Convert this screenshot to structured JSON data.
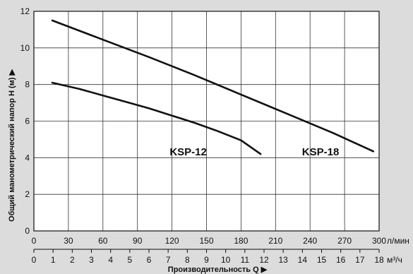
{
  "chart_data": {
    "type": "line",
    "y_title": "Общий манометрический напор H (м) ▶",
    "x_title": "Производительность Q ▶",
    "x_unit_primary": "л/мин",
    "x_unit_secondary": "м³/ч",
    "ylim": [
      0,
      12
    ],
    "xlim_lmin": [
      0,
      300
    ],
    "y_ticks": [
      "0",
      "2",
      "4",
      "6",
      "8",
      "10",
      "12"
    ],
    "x_ticks_lmin": [
      "0",
      "30",
      "60",
      "90",
      "120",
      "150",
      "180",
      "210",
      "240",
      "270",
      "300"
    ],
    "x_ticks_m3h": [
      "0",
      "1",
      "2",
      "3",
      "4",
      "5",
      "6",
      "7",
      "8",
      "9",
      "10",
      "11",
      "12",
      "13",
      "14",
      "15",
      "16",
      "17",
      "18"
    ],
    "grid": true,
    "series": [
      {
        "name": "KSP-12",
        "x": [
          16,
          40,
          60,
          80,
          100,
          120,
          140,
          160,
          180,
          197
        ],
        "y": [
          8.1,
          7.75,
          7.4,
          7.05,
          6.7,
          6.3,
          5.9,
          5.45,
          4.95,
          4.2
        ]
      },
      {
        "name": "KSP-18",
        "x": [
          16,
          60,
          100,
          140,
          180,
          220,
          260,
          295
        ],
        "y": [
          11.5,
          10.45,
          9.5,
          8.5,
          7.45,
          6.4,
          5.35,
          4.35
        ]
      }
    ],
    "series_label_positions": [
      {
        "name": "KSP-12",
        "x": 118,
        "y": 4.2
      },
      {
        "name": "KSP-18",
        "x": 233,
        "y": 4.2
      }
    ]
  }
}
